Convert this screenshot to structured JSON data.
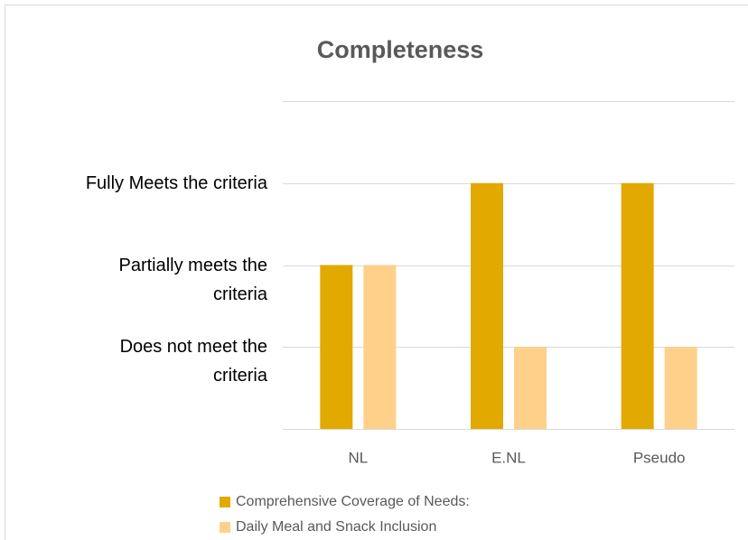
{
  "chart_data": {
    "type": "bar",
    "title": "Completeness",
    "categories": [
      "NL",
      "E.NL",
      "Pseudo"
    ],
    "series": [
      {
        "name": "Comprehensive Coverage of Needs:",
        "color": "#e2a900",
        "values": [
          2,
          3,
          3
        ]
      },
      {
        "name": "Daily Meal and Snack Inclusion",
        "color": "#ffd08a",
        "values": [
          2,
          1,
          1
        ]
      }
    ],
    "ylim": [
      0,
      4
    ],
    "yticks": [
      {
        "value": 1,
        "label": "Does not meet the criteria"
      },
      {
        "value": 2,
        "label": "Partially meets the criteria"
      },
      {
        "value": 3,
        "label": "Fully Meets the criteria"
      }
    ],
    "grid": true
  }
}
